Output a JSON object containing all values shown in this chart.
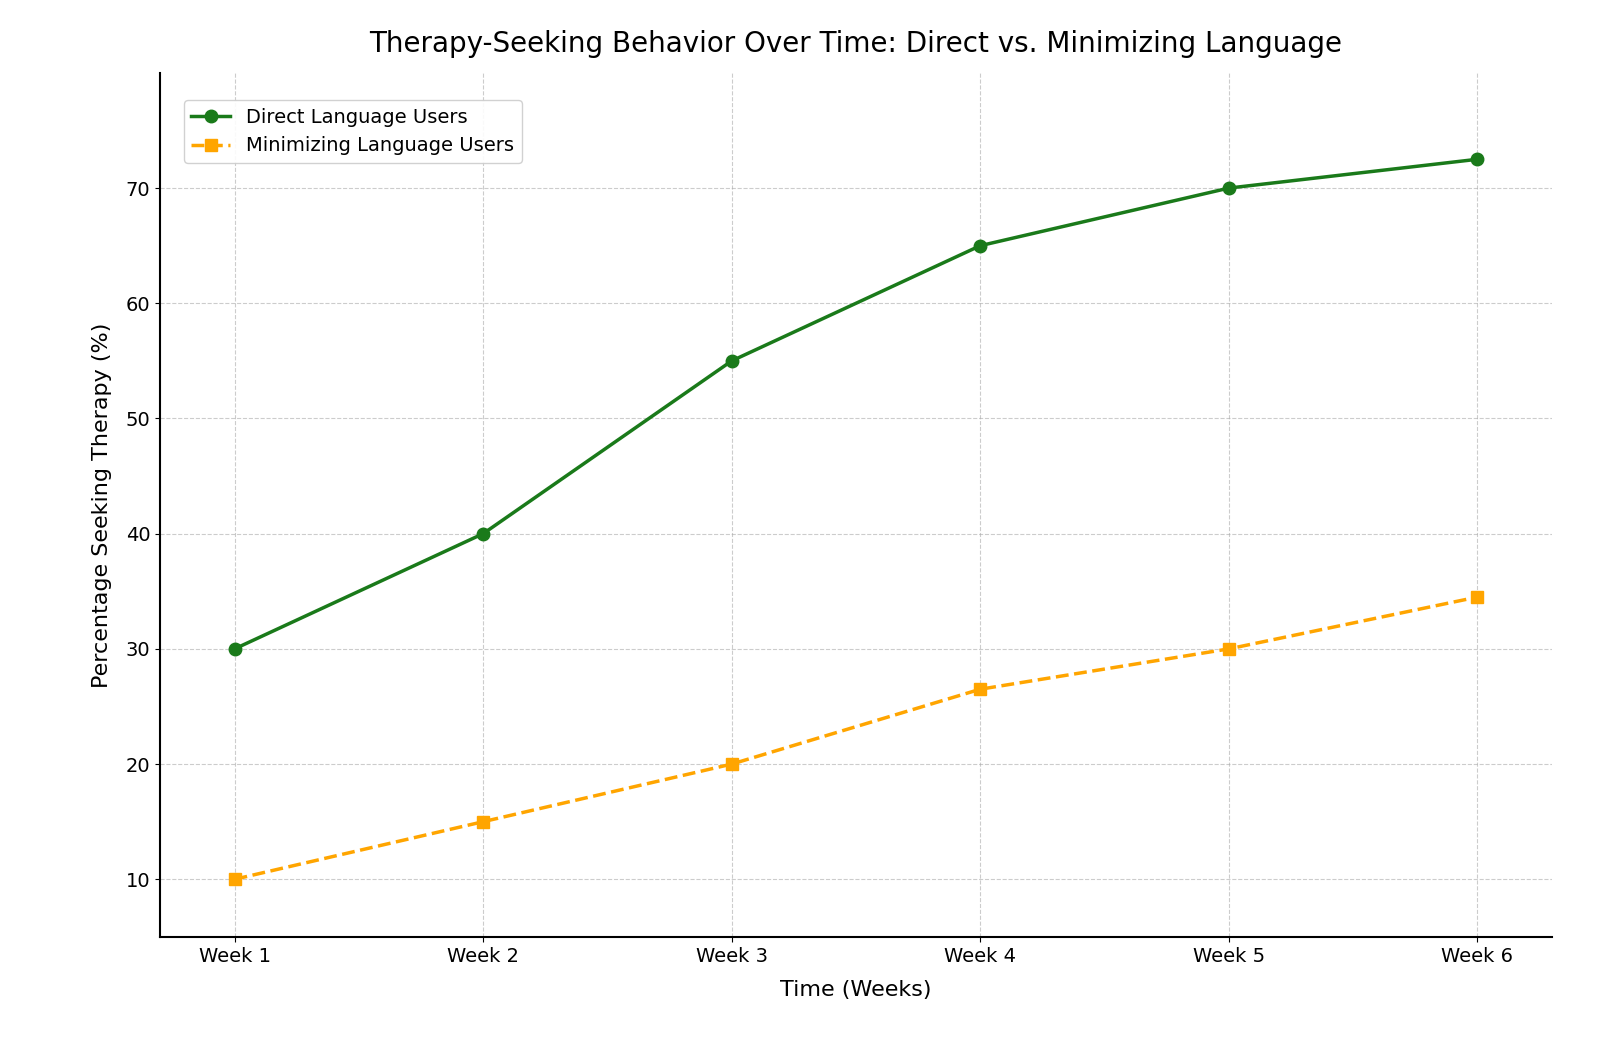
{
  "title": "Therapy-Seeking Behavior Over Time: Direct vs. Minimizing Language",
  "xlabel": "Time (Weeks)",
  "ylabel": "Percentage Seeking Therapy (%)",
  "weeks": [
    "Week 1",
    "Week 2",
    "Week 3",
    "Week 4",
    "Week 5",
    "Week 6"
  ],
  "direct_values": [
    30,
    40,
    55,
    65,
    70,
    72.5
  ],
  "minimizing_values": [
    10,
    15,
    20,
    26.5,
    30,
    34.5
  ],
  "direct_color": "#1a7a1a",
  "minimizing_color": "#FFA500",
  "direct_label": "Direct Language Users",
  "minimizing_label": "Minimizing Language Users",
  "ylim": [
    5,
    80
  ],
  "yticks": [
    10,
    20,
    30,
    40,
    50,
    60,
    70
  ],
  "title_fontsize": 20,
  "axis_label_fontsize": 16,
  "tick_fontsize": 14,
  "legend_fontsize": 14,
  "background_color": "#ffffff",
  "grid_color": "#aaaaaa"
}
